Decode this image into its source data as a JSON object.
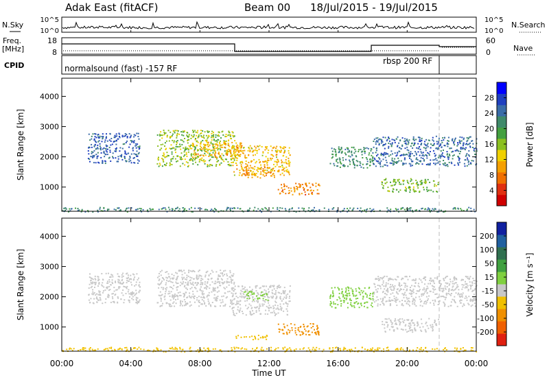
{
  "header": {
    "station": "Adak East (fitACF)",
    "beam": "Beam 00",
    "date_range": "18/Jul/2015 - 19/Jul/2015"
  },
  "noise_panel": {
    "left_label": "N.Sky",
    "right_label": "N.Search",
    "left_ticks": [
      "10^5",
      "10^0"
    ],
    "right_ticks": [
      "10^5",
      "10^0"
    ]
  },
  "freq_panel": {
    "left_label_1": "Freq.",
    "left_label_2": "[MHz]",
    "right_label": "Nave",
    "left_ticks": [
      "18",
      "8"
    ],
    "right_ticks": [
      "60",
      "0"
    ]
  },
  "cpid_panel": {
    "label": "CPID",
    "mode_1": "normalsound (fast) -157 RF",
    "mode_2": "rbsp 200 RF"
  },
  "chart_data": [
    {
      "type": "heatmap",
      "name": "power",
      "ylabel": "Slant Range [km]",
      "yticks": [
        "1000",
        "2000",
        "3000",
        "4000"
      ],
      "ylim": [
        200,
        4600
      ],
      "xlim": [
        0,
        24
      ],
      "colorbar_label": "Power [dB]",
      "colorbar_ticks": [
        "4",
        "8",
        "12",
        "16",
        "20",
        "24",
        "28"
      ],
      "colorbar_colors": [
        "#0000ff",
        "#2040c0",
        "#3a6ca8",
        "#3f8a6a",
        "#44a040",
        "#8cc020",
        "#f0d000",
        "#f5a000",
        "#f07000",
        "#e03010",
        "#d00000"
      ],
      "regions": [
        {
          "t0": 1.5,
          "t1": 4.5,
          "r0": 1800,
          "r1": 2800,
          "v": 6
        },
        {
          "t0": 5.5,
          "t1": 10.0,
          "r0": 1700,
          "r1": 2900,
          "v": 15
        },
        {
          "t0": 9.8,
          "t1": 13.2,
          "r0": 1400,
          "r1": 2400,
          "v": 19
        },
        {
          "t0": 7.5,
          "t1": 10.5,
          "r0": 2000,
          "r1": 2500,
          "v": 20
        },
        {
          "t0": 10.5,
          "t1": 12.3,
          "r0": 1300,
          "r1": 1700,
          "v": 21
        },
        {
          "t0": 12.5,
          "t1": 14.9,
          "r0": 750,
          "r1": 1150,
          "v": 22
        },
        {
          "t0": 15.5,
          "t1": 18.0,
          "r0": 1650,
          "r1": 2350,
          "v": 10
        },
        {
          "t0": 18.0,
          "t1": 24.0,
          "r0": 1700,
          "r1": 2700,
          "v": 7
        },
        {
          "t0": 18.5,
          "t1": 21.8,
          "r0": 850,
          "r1": 1300,
          "v": 14
        },
        {
          "t0": 0.0,
          "t1": 24.0,
          "r0": 200,
          "r1": 350,
          "v": 9
        }
      ]
    },
    {
      "type": "heatmap",
      "name": "velocity",
      "ylabel": "Slant Range [km]",
      "yticks": [
        "1000",
        "2000",
        "3000",
        "4000"
      ],
      "ylim": [
        200,
        4600
      ],
      "xlim": [
        0,
        24
      ],
      "colorbar_label": "Velocity [m s⁻¹]",
      "colorbar_ticks": [
        "200",
        "100",
        "50",
        "15",
        "-15",
        "-50",
        "-100",
        "-200"
      ],
      "colorbar_colors": [
        "#1020a0",
        "#2060a0",
        "#307050",
        "#40a040",
        "#80d040",
        "#c8c8c8",
        "#f0c000",
        "#f09000",
        "#f06000",
        "#e02010"
      ],
      "regions": [
        {
          "t0": 1.5,
          "t1": 4.5,
          "r0": 1800,
          "r1": 2800,
          "v": 0
        },
        {
          "t0": 5.5,
          "t1": 10.0,
          "r0": 1700,
          "r1": 2900,
          "v": 0
        },
        {
          "t0": 9.8,
          "t1": 13.2,
          "r0": 1400,
          "r1": 2400,
          "v": 5
        },
        {
          "t0": 10.5,
          "t1": 12.0,
          "r0": 1900,
          "r1": 2200,
          "v": 30
        },
        {
          "t0": 10.0,
          "t1": 12.0,
          "r0": 600,
          "r1": 750,
          "v": -40
        },
        {
          "t0": 12.5,
          "t1": 14.9,
          "r0": 750,
          "r1": 1150,
          "v": -60
        },
        {
          "t0": 15.5,
          "t1": 18.0,
          "r0": 1650,
          "r1": 2350,
          "v": 25
        },
        {
          "t0": 18.0,
          "t1": 24.0,
          "r0": 1700,
          "r1": 2700,
          "v": 0
        },
        {
          "t0": 18.5,
          "t1": 21.8,
          "r0": 850,
          "r1": 1300,
          "v": 0
        },
        {
          "t0": 0.0,
          "t1": 24.0,
          "r0": 200,
          "r1": 350,
          "v": -30
        }
      ]
    }
  ],
  "time_axis": {
    "ticks": [
      "00:00",
      "04:00",
      "08:00",
      "12:00",
      "16:00",
      "20:00",
      "00:00"
    ],
    "label": "Time UT"
  }
}
